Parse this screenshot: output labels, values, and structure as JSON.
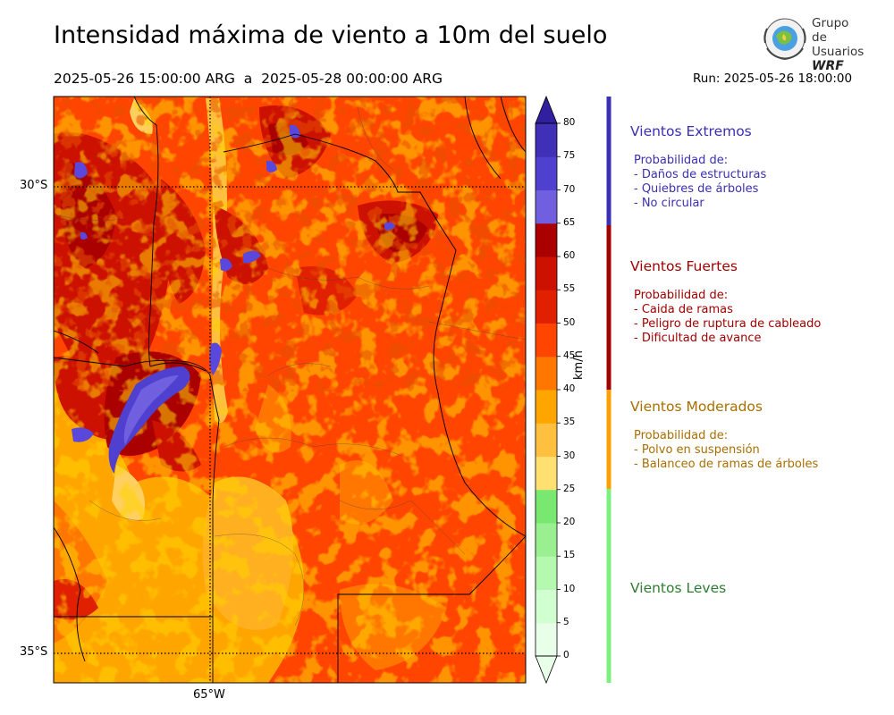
{
  "header": {
    "title": "Intensidad máxima de viento a 10m del suelo",
    "period": "2025-05-26 15:00:00 ARG  a  2025-05-28 00:00:00 ARG",
    "run": "Run: 2025-05-26 18:00:00"
  },
  "logo": {
    "line1": "Grupo de",
    "line2": "Usuarios",
    "line3": "WRF"
  },
  "map": {
    "lat_labels": [
      "30°S",
      "35°S"
    ],
    "lon_labels": [
      "65°W"
    ],
    "colors": {
      "base": "#ff4500",
      "dark_red": "#cc1100",
      "darker_red": "#aa0000",
      "orange": "#ffa500",
      "light_orange": "#ffc040",
      "blue": "#5050e0"
    }
  },
  "colorbar": {
    "units": "km/h",
    "ticks": [
      "0",
      "5",
      "10",
      "15",
      "20",
      "25",
      "30",
      "35",
      "40",
      "45",
      "50",
      "55",
      "60",
      "65",
      "70",
      "75",
      "80"
    ],
    "colors": [
      "#e8ffe8",
      "#d0ffd0",
      "#b5f8b0",
      "#9af090",
      "#78e870",
      "#ffe070",
      "#ffc040",
      "#ffa500",
      "#ff7700",
      "#ff4500",
      "#e02000",
      "#cc1100",
      "#aa0000",
      "#7060e0",
      "#5040d0",
      "#4030b8",
      "#3020a0"
    ]
  },
  "categories": [
    {
      "title": "Vientos Extremos",
      "desc": "Probabilidad de:\n- Daños de estructuras\n- Quiebres de árboles\n- No circular",
      "color": "#3a2fb5"
    },
    {
      "title": "Vientos Fuertes",
      "desc": "Probabilidad de:\n- Caida de ramas\n- Peligro de ruptura de cableado\n- Dificultad de avance",
      "color": "#a00000"
    },
    {
      "title": "Vientos Moderados",
      "desc": "Probabilidad de:\n- Polvo en suspensión\n- Balanceo de ramas de árboles",
      "color": "#a86f00"
    },
    {
      "title": "Vientos Leves",
      "desc": "",
      "color": "#2e7d32"
    }
  ]
}
